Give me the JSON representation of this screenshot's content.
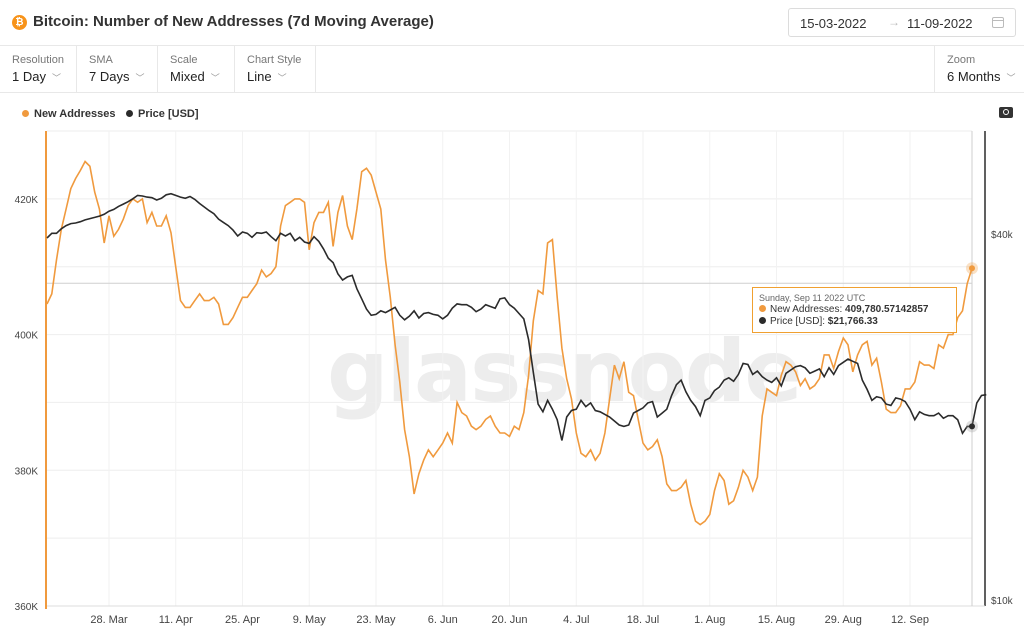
{
  "header": {
    "title": "Bitcoin: Number of New Addresses (7d Moving Average)",
    "date_from": "15-03-2022",
    "date_to": "11-09-2022",
    "arrow": "→"
  },
  "controls": {
    "resolution": {
      "label": "Resolution",
      "value": "1 Day"
    },
    "sma": {
      "label": "SMA",
      "value": "7 Days"
    },
    "scale": {
      "label": "Scale",
      "value": "Mixed"
    },
    "chart_style": {
      "label": "Chart Style",
      "value": "Line"
    },
    "zoom": {
      "label": "Zoom",
      "value": "6 Months"
    }
  },
  "icons": {
    "coin": "bitcoin-icon",
    "calendar": "calendar-icon",
    "camera": "camera-icon",
    "chevron": "chevron-down-icon"
  },
  "colors": {
    "addresses": "#f09a3e",
    "price": "#2b2b2b",
    "brand": "#f7931a"
  },
  "watermark": "glassnode",
  "tooltip": {
    "date": "Sunday, Sep 11 2022 UTC",
    "addresses_label": "New Addresses:",
    "addresses_value": "409,780.57142857",
    "price_label": "Price [USD]:",
    "price_value": "$21,766.33"
  },
  "chart_data": {
    "type": "line",
    "legend": [
      "New Addresses",
      "Price [USD]"
    ],
    "legend_position": "top-left",
    "x_ticks": [
      "28. Mar",
      "11. Apr",
      "25. Apr",
      "9. May",
      "23. May",
      "6. Jun",
      "20. Jun",
      "4. Jul",
      "18. Jul",
      "1. Aug",
      "15. Aug",
      "29. Aug",
      "12. Sep"
    ],
    "y_left_ticks": [
      "360K",
      "380K",
      "400K",
      "420K"
    ],
    "y_left_range": [
      360000,
      430000
    ],
    "y_right_ticks": [
      "$10k",
      "$40k"
    ],
    "y_right_scale": "log",
    "grid": true,
    "series": [
      {
        "name": "New Addresses",
        "values": [
          404500,
          406000,
          411000,
          415500,
          418500,
          421500,
          423000,
          424200,
          425500,
          424800,
          421000,
          418500,
          413500,
          417500,
          414500,
          415500,
          417000,
          419000,
          420000,
          419500,
          420000,
          416500,
          418000,
          416000,
          416000,
          417500,
          415000,
          410000,
          405000,
          404000,
          404000,
          405000,
          406000,
          405000,
          405000,
          405500,
          404500,
          401500,
          401500,
          402500,
          404000,
          405500,
          405500,
          406500,
          407500,
          409500,
          408500,
          409000,
          410000,
          416000,
          419000,
          419500,
          420000,
          420000,
          419500,
          412500,
          416500,
          418000,
          418000,
          419500,
          413000,
          418000,
          420500,
          416000,
          414000,
          418500,
          424000,
          424500,
          423500,
          421000,
          418500,
          411000,
          405500,
          398500,
          393000,
          386000,
          382000,
          376500,
          379500,
          381500,
          383000,
          382000,
          383000,
          384000,
          385500,
          384000,
          390000,
          388500,
          388000,
          386500,
          386000,
          386500,
          387500,
          388000,
          386500,
          385500,
          385500,
          385000,
          386500,
          386000,
          388500,
          394000,
          402000,
          406500,
          406000,
          413500,
          414000,
          405500,
          398000,
          393500,
          390500,
          385500,
          382500,
          382000,
          383000,
          381500,
          382500,
          385500,
          390500,
          395500,
          393500,
          396000,
          391500,
          391000,
          387500,
          384000,
          383000,
          383500,
          384500,
          382000,
          378000,
          377000,
          377000,
          377500,
          378500,
          375000,
          372500,
          372000,
          372500,
          373500,
          377000,
          379500,
          378500,
          375000,
          375500,
          377500,
          380000,
          379000,
          377000,
          379000,
          388000,
          392000,
          391500,
          391000,
          394000,
          396000,
          395500,
          394500,
          392500,
          393500,
          392000,
          392500,
          393500,
          397000,
          397000,
          395000,
          397500,
          399500,
          398500,
          394500,
          397000,
          398500,
          399000,
          395500,
          396500,
          393000,
          389000,
          388500,
          388500,
          389500,
          392000,
          392000,
          393000,
          396000,
          395500,
          395500,
          395000,
          398500,
          398000,
          400000,
          400000,
          402500,
          403500,
          407500,
          409780.57
        ]
      },
      {
        "name": "Price [USD]",
        "values": [
          39400,
          40100,
          40100,
          40800,
          41300,
          41600,
          41700,
          41900,
          42200,
          42400,
          42600,
          42800,
          43100,
          43600,
          43900,
          44400,
          44800,
          45200,
          45700,
          46300,
          46200,
          46000,
          45900,
          45500,
          45800,
          46400,
          46600,
          46300,
          46000,
          45800,
          46100,
          45600,
          44900,
          44300,
          43700,
          43200,
          42300,
          41800,
          41300,
          40600,
          39700,
          40300,
          40100,
          39500,
          40200,
          40100,
          40300,
          39600,
          39000,
          40100,
          39700,
          40100,
          39000,
          39500,
          38800,
          38600,
          39600,
          38900,
          37800,
          36500,
          35900,
          34400,
          33600,
          34000,
          34200,
          32500,
          31300,
          30100,
          29400,
          29500,
          29900,
          29700,
          30000,
          30300,
          29400,
          28900,
          29300,
          29900,
          29100,
          29600,
          29700,
          29500,
          29400,
          29000,
          29400,
          30200,
          30700,
          30600,
          30600,
          30300,
          29800,
          30100,
          30600,
          30400,
          30200,
          31300,
          31400,
          30600,
          30200,
          29600,
          29000,
          26800,
          23700,
          21000,
          20400,
          21300,
          20600,
          19800,
          18300,
          20000,
          20500,
          20600,
          21300,
          20800,
          21100,
          20500,
          20400,
          20200,
          20000,
          19700,
          19400,
          19300,
          19400,
          20300,
          20500,
          20700,
          21100,
          21200,
          20000,
          20300,
          20600,
          21700,
          22600,
          23000,
          22000,
          21300,
          20800,
          20100,
          21300,
          21500,
          22100,
          22400,
          23000,
          23200,
          22900,
          23500,
          24500,
          24400,
          23500,
          23800,
          23300,
          23000,
          22800,
          23200,
          22500,
          23600,
          23900,
          24200,
          24300,
          24100,
          23600,
          23800,
          24000,
          23300,
          24100,
          23500,
          24300,
          24600,
          24900,
          24700,
          24500,
          23000,
          22200,
          21300,
          21600,
          21500,
          21000,
          20900,
          21500,
          21400,
          21200,
          20600,
          19800,
          20400,
          20200,
          20100,
          20100,
          20300,
          19900,
          20100,
          20100,
          19800,
          18800,
          19300,
          19300,
          21100,
          21700,
          21766.33
        ]
      }
    ]
  }
}
